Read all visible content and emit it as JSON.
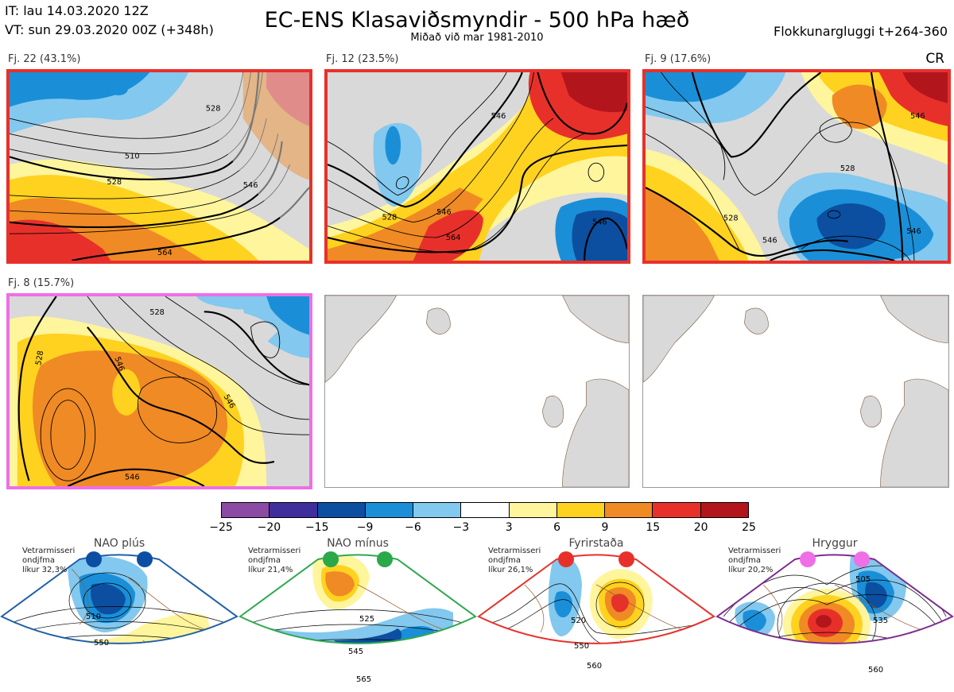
{
  "header": {
    "it_line": "IT: lau 14.03.2020 12Z",
    "vt_line": "VT: sun 29.03.2020 00Z  (+348h)",
    "title": "EC-ENS Klasaviðsmyndir - 500 hPa hæð",
    "subtitle": "Miðað við mar 1981-2010",
    "window": "Flokkunargluggi t+264-360",
    "cr": "CR"
  },
  "panels": [
    {
      "label": "Fj. 22 (43.1%)",
      "border": "#e8302b",
      "contours": [
        "510",
        "528",
        "528",
        "546",
        "564"
      ]
    },
    {
      "label": "Fj. 12 (23.5%)",
      "border": "#e8302b",
      "contours": [
        "528",
        "546",
        "564",
        "546",
        "546"
      ]
    },
    {
      "label": "Fj. 9 (17.6%)",
      "border": "#e8302b",
      "contours": [
        "528",
        "528",
        "546",
        "546",
        "546"
      ]
    },
    {
      "label": "Fj. 8 (15.7%)",
      "border": "#ee6fe6",
      "contours": [
        "528",
        "546",
        "546",
        "528",
        "546"
      ]
    },
    {
      "label": "",
      "border": "#999999"
    },
    {
      "label": "",
      "border": "#999999"
    }
  ],
  "colorbar": {
    "colors": [
      "#8b4aa4",
      "#3e2f9d",
      "#0c4fa0",
      "#1a8fd8",
      "#83c8ee",
      "#ffffff",
      "#fff59d",
      "#ffd21f",
      "#f08a24",
      "#e8302b",
      "#b3151c"
    ],
    "ticks": [
      "−25",
      "−20",
      "−15",
      "−9",
      "−6",
      "−3",
      "3",
      "6",
      "9",
      "15",
      "20",
      "25"
    ]
  },
  "regimes": [
    {
      "title": "NAO plús",
      "note": [
        "Vetrarmisseri",
        "ondjfma",
        "líkur 32,3%"
      ],
      "border": "#1f5fa8",
      "dot": "#0a4fa3",
      "contours": [
        "510",
        "550"
      ]
    },
    {
      "title": "NAO mínus",
      "note": [
        "Vetrarmisseri",
        "ondjfma",
        "líkur 21,4%"
      ],
      "border": "#2fa84f",
      "dot": "#2aa84a",
      "contours": [
        "525",
        "545",
        "565"
      ]
    },
    {
      "title": "Fyrirstaða",
      "note": [
        "Vetrarmisseri",
        "ondjfma",
        "líkur 26,1%"
      ],
      "border": "#e8302b",
      "dot": "#e8302b",
      "contours": [
        "520",
        "550",
        "560"
      ]
    },
    {
      "title": "Hryggur",
      "note": [
        "Vetrarmisseri",
        "ondjfma",
        "líkur 20,2%"
      ],
      "border": "#7b2b8f",
      "dot": "#ee6fe6",
      "contours": [
        "505",
        "535",
        "560"
      ]
    }
  ]
}
